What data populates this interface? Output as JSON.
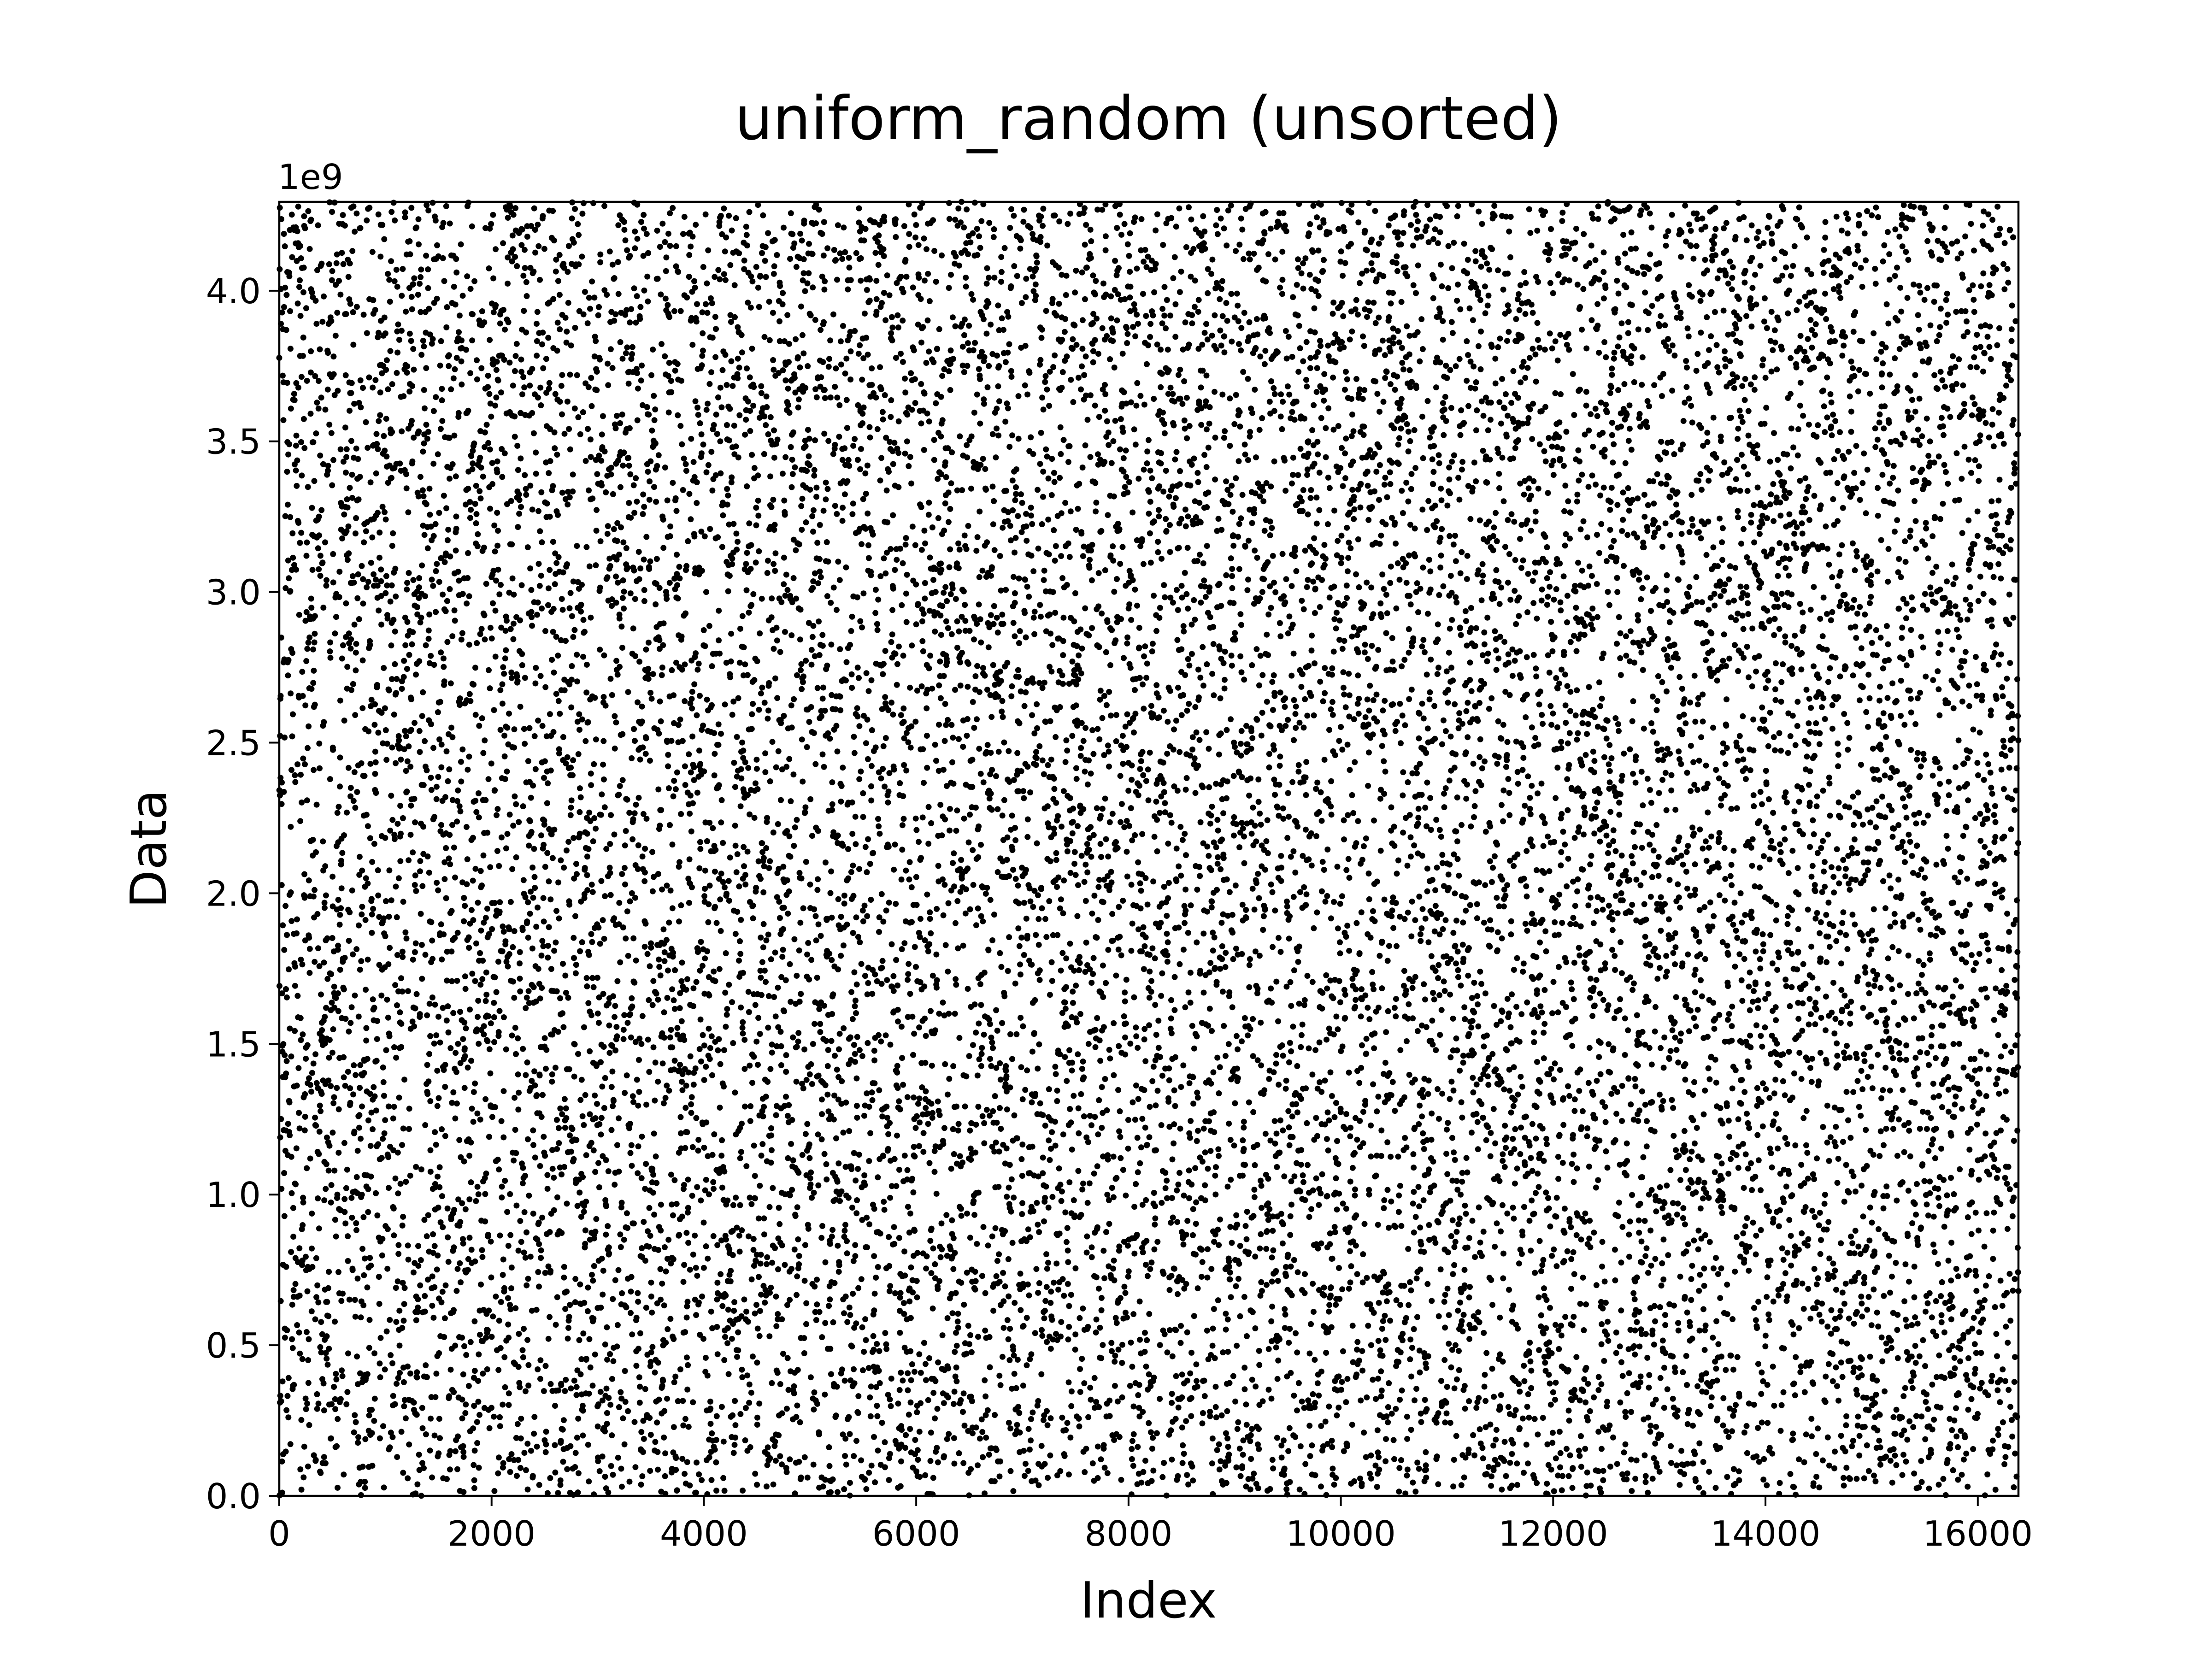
{
  "chart_data": {
    "type": "scatter",
    "title": "uniform_random (unsorted)",
    "xlabel": "Index",
    "ylabel": "Data",
    "y_offset_label": "1e9",
    "xlim": [
      0,
      16383
    ],
    "ylim": [
      0,
      4294967295
    ],
    "x_ticks": [
      0,
      2000,
      4000,
      6000,
      8000,
      10000,
      12000,
      14000,
      16000
    ],
    "x_tick_labels": [
      "0",
      "2000",
      "4000",
      "6000",
      "8000",
      "10000",
      "12000",
      "14000",
      "16000"
    ],
    "y_ticks": [
      0,
      0.5,
      1.0,
      1.5,
      2.0,
      2.5,
      3.0,
      3.5,
      4.0
    ],
    "y_tick_labels": [
      "0.0",
      "0.5",
      "1.0",
      "1.5",
      "2.0",
      "2.5",
      "3.0",
      "3.5",
      "4.0"
    ],
    "series": [
      {
        "n_points": 16384,
        "distribution": "uniform",
        "x_range": [
          0,
          16383
        ],
        "y_range": [
          0,
          4294967295
        ],
        "color": "#000000"
      }
    ],
    "grid": false,
    "legend": "none"
  }
}
